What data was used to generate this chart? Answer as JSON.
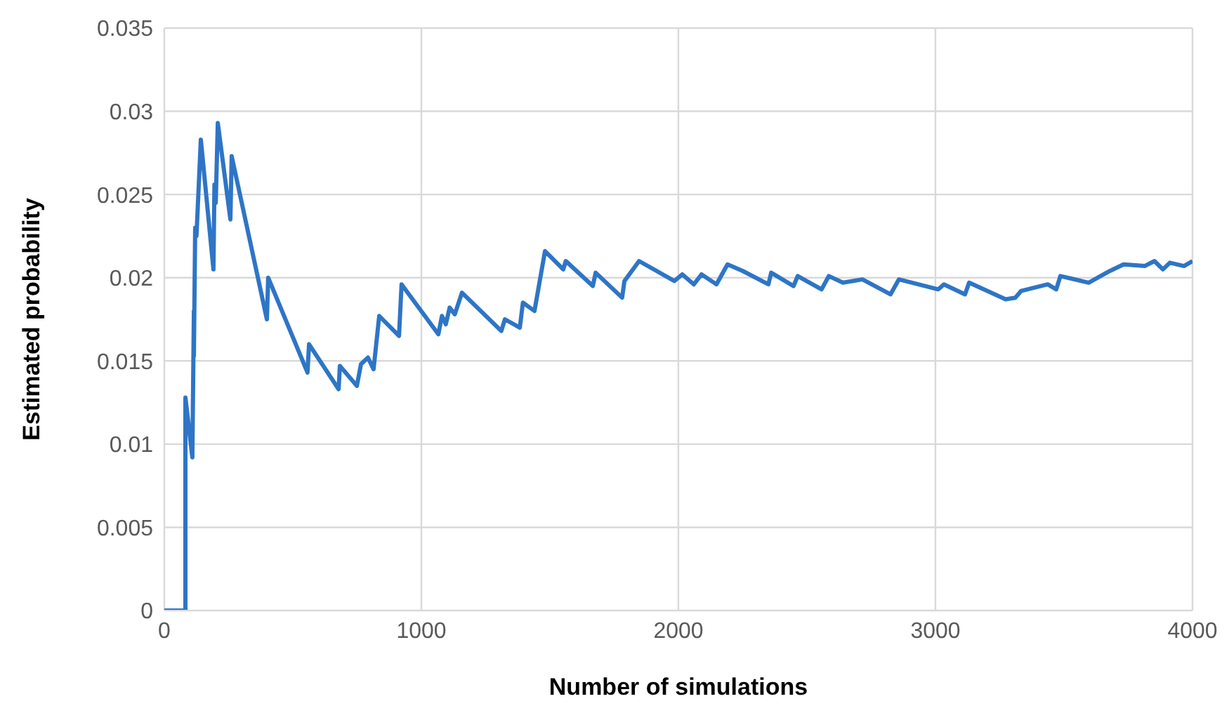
{
  "chart_data": {
    "type": "line",
    "xlabel": "Number of simulations",
    "ylabel": "Estimated probability",
    "x": [
      0,
      82,
      82,
      109,
      115,
      115,
      120,
      125,
      142,
      191,
      195,
      200,
      208,
      257,
      262,
      399,
      404,
      557,
      563,
      678,
      683,
      749,
      765,
      792,
      814,
      836,
      913,
      923,
      1066,
      1080,
      1095,
      1110,
      1130,
      1158,
      1311,
      1325,
      1383,
      1395,
      1440,
      1481,
      1552,
      1562,
      1667,
      1678,
      1781,
      1790,
      1847,
      1984,
      2015,
      2060,
      2090,
      2148,
      2191,
      2251,
      2350,
      2361,
      2448,
      2464,
      2557,
      2585,
      2640,
      2716,
      2825,
      2858,
      3011,
      3033,
      3115,
      3131,
      3273,
      3311,
      3333,
      3437,
      3470,
      3486,
      3596,
      3678,
      3732,
      3814,
      3852,
      3885,
      3912,
      3967,
      4000
    ],
    "values": [
      0,
      0,
      0.0128,
      0.0092,
      0.018,
      0.0153,
      0.023,
      0.0225,
      0.0283,
      0.0205,
      0.0256,
      0.0245,
      0.0293,
      0.0235,
      0.0273,
      0.0175,
      0.02,
      0.0143,
      0.016,
      0.0133,
      0.0147,
      0.0135,
      0.0148,
      0.0152,
      0.0145,
      0.0177,
      0.0165,
      0.0196,
      0.0166,
      0.0177,
      0.0172,
      0.0182,
      0.0178,
      0.0191,
      0.0168,
      0.0175,
      0.017,
      0.0185,
      0.018,
      0.0216,
      0.0205,
      0.021,
      0.0195,
      0.0203,
      0.0188,
      0.0198,
      0.021,
      0.0198,
      0.0202,
      0.0196,
      0.0202,
      0.0196,
      0.0208,
      0.0204,
      0.0196,
      0.0203,
      0.0195,
      0.0201,
      0.0193,
      0.0201,
      0.0197,
      0.0199,
      0.019,
      0.0199,
      0.0193,
      0.0196,
      0.019,
      0.0197,
      0.0187,
      0.0188,
      0.0192,
      0.0196,
      0.0193,
      0.0201,
      0.0197,
      0.0204,
      0.0208,
      0.0207,
      0.021,
      0.0205,
      0.0209,
      0.0207,
      0.021
    ],
    "color": "#2e75c6",
    "xlim": [
      0,
      4000
    ],
    "xticks": [
      0,
      1000,
      2000,
      3000,
      4000
    ],
    "ylim": [
      0,
      0.035
    ],
    "yticks": [
      0,
      0.005,
      0.01,
      0.015,
      0.02,
      0.025,
      0.03,
      0.035
    ],
    "grid": true,
    "legend": false
  }
}
